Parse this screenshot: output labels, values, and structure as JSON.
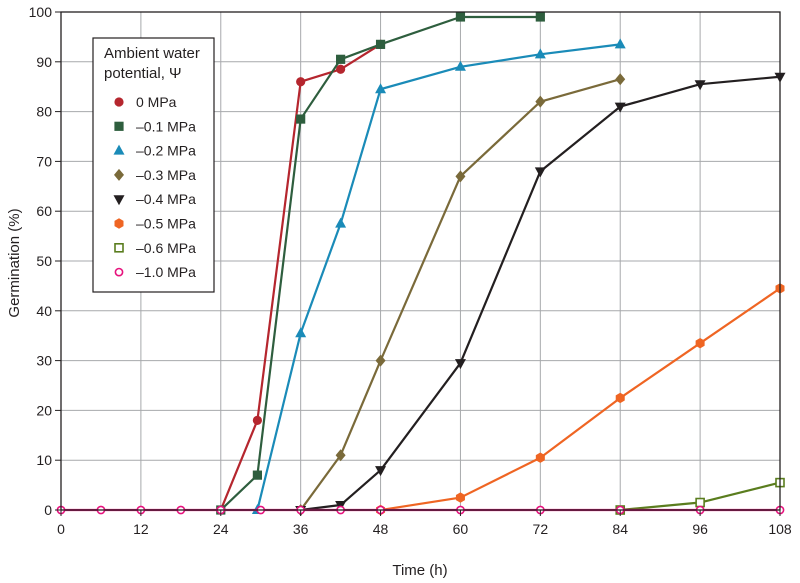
{
  "chart_data": {
    "type": "line",
    "title": "",
    "xlabel": "Time (h)",
    "ylabel": "Germination (%)",
    "xlim": [
      0,
      108
    ],
    "ylim": [
      0,
      100
    ],
    "xticks": [
      0,
      12,
      24,
      36,
      48,
      60,
      72,
      84,
      96,
      108
    ],
    "yticks": [
      0,
      10,
      20,
      30,
      40,
      50,
      60,
      70,
      80,
      90,
      100
    ],
    "grid": true,
    "legend": {
      "title_line1": "Ambient water",
      "title_line2": "potential, Ψ",
      "position": "top-left"
    },
    "series": [
      {
        "name": "0 MPa",
        "color": "#b5262e",
        "marker": "circle",
        "x": [
          24,
          29.5,
          36,
          42,
          48
        ],
        "y": [
          0,
          18,
          86,
          88.5,
          93.5
        ]
      },
      {
        "name": "–0.1 MPa",
        "color": "#2e5e3e",
        "marker": "square",
        "x": [
          24,
          29.5,
          36,
          42,
          48,
          60,
          72
        ],
        "y": [
          0,
          7,
          78.5,
          90.5,
          93.5,
          99,
          99
        ]
      },
      {
        "name": "–0.2 MPa",
        "color": "#1a8bb8",
        "marker": "triangle-up",
        "x": [
          29.5,
          36,
          42,
          48,
          60,
          72,
          84
        ],
        "y": [
          0,
          35.5,
          57.5,
          84.5,
          89,
          91.5,
          93.5
        ]
      },
      {
        "name": "–0.3 MPa",
        "color": "#7a6a3a",
        "marker": "diamond",
        "x": [
          36,
          42,
          48,
          60,
          72,
          84
        ],
        "y": [
          0,
          11,
          30,
          67,
          82,
          86.5
        ]
      },
      {
        "name": "–0.4 MPa",
        "color": "#231f20",
        "marker": "triangle-down",
        "x": [
          36,
          42,
          48,
          60,
          72,
          84,
          96,
          108
        ],
        "y": [
          0,
          1,
          8,
          29.5,
          68,
          81,
          85.5,
          87
        ]
      },
      {
        "name": "–0.5 MPa",
        "color": "#ef6523",
        "marker": "hexagon",
        "x": [
          48,
          60,
          72,
          84,
          96,
          108
        ],
        "y": [
          0,
          2.5,
          10.5,
          22.5,
          33.5,
          44.5
        ]
      },
      {
        "name": "–0.6 MPa",
        "color": "#5a7d1e",
        "marker": "square-open",
        "x": [
          84,
          96,
          108
        ],
        "y": [
          0,
          1.5,
          5.5
        ]
      },
      {
        "name": "–1.0 MPa",
        "color": "#e6127d",
        "marker": "circle-open",
        "x": [
          0,
          6,
          12,
          18,
          24,
          30,
          36,
          42,
          48,
          60,
          72,
          84,
          96,
          108
        ],
        "y": [
          0,
          0,
          0,
          0,
          0,
          0,
          0,
          0,
          0,
          0,
          0,
          0,
          0,
          0
        ]
      }
    ]
  }
}
